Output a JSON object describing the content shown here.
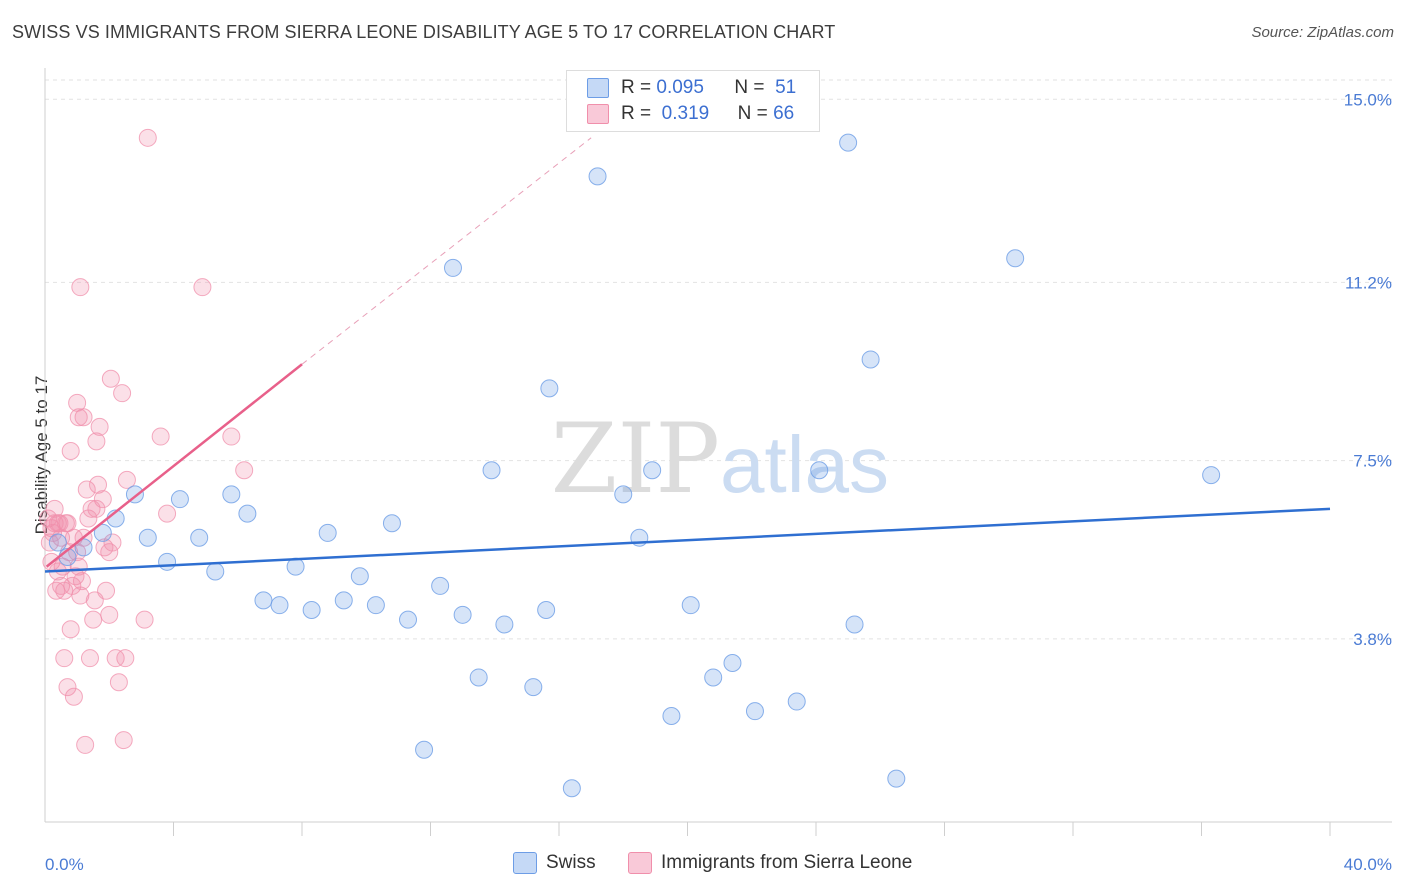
{
  "header": {
    "title": "SWISS VS IMMIGRANTS FROM SIERRA LEONE DISABILITY AGE 5 TO 17 CORRELATION CHART",
    "source": "Source: ZipAtlas.com"
  },
  "watermark": {
    "zip": "ZIP",
    "atlas": "atlas"
  },
  "legend": {
    "swiss": {
      "r_label": "R =",
      "r_value": "0.095",
      "n_label": "N =",
      "n_value": "51"
    },
    "sierra": {
      "r_label": "R =",
      "r_value": "0.319",
      "n_label": "N =",
      "n_value": "66"
    }
  },
  "bottom_legend": {
    "swiss": "Swiss",
    "sierra": "Immigrants from Sierra Leone"
  },
  "chart_data": {
    "type": "scatter",
    "title": "SWISS VS IMMIGRANTS FROM SIERRA LEONE DISABILITY AGE 5 TO 17 CORRELATION CHART",
    "xlabel": "",
    "ylabel": "Disability Age 5 to 17",
    "xlim": [
      0,
      40
    ],
    "ylim": [
      0,
      15.4
    ],
    "x_tick_labels": [
      "0.0%",
      "40.0%"
    ],
    "y_ticks": [
      3.8,
      7.5,
      11.2,
      15.0
    ],
    "y_tick_labels": [
      "3.8%",
      "7.5%",
      "11.2%",
      "15.0%"
    ],
    "colors": {
      "swiss": "#6d9de6",
      "swiss_line": "#2f6fd1",
      "sierra": "#f08fab",
      "sierra_line": "#e8608a"
    },
    "series": [
      {
        "name": "Swiss",
        "r": 0.095,
        "n": 51,
        "trend": {
          "x": [
            0,
            40
          ],
          "y": [
            5.2,
            6.5
          ]
        },
        "points": [
          [
            0.4,
            5.8
          ],
          [
            0.7,
            5.5
          ],
          [
            1.2,
            5.7
          ],
          [
            1.8,
            6.0
          ],
          [
            2.2,
            6.3
          ],
          [
            2.8,
            6.8
          ],
          [
            3.2,
            5.9
          ],
          [
            3.8,
            5.4
          ],
          [
            4.2,
            6.7
          ],
          [
            4.8,
            5.9
          ],
          [
            5.3,
            5.2
          ],
          [
            5.8,
            6.8
          ],
          [
            6.3,
            6.4
          ],
          [
            6.8,
            4.6
          ],
          [
            7.3,
            4.5
          ],
          [
            7.8,
            5.3
          ],
          [
            8.3,
            4.4
          ],
          [
            8.8,
            6.0
          ],
          [
            9.3,
            4.6
          ],
          [
            9.8,
            5.1
          ],
          [
            10.3,
            4.5
          ],
          [
            10.8,
            6.2
          ],
          [
            11.3,
            4.2
          ],
          [
            11.8,
            1.5
          ],
          [
            12.3,
            4.9
          ],
          [
            12.7,
            11.5
          ],
          [
            13.0,
            4.3
          ],
          [
            13.5,
            3.0
          ],
          [
            13.9,
            7.3
          ],
          [
            14.3,
            4.1
          ],
          [
            15.2,
            2.8
          ],
          [
            15.6,
            4.4
          ],
          [
            15.7,
            9.0
          ],
          [
            16.4,
            0.7
          ],
          [
            17.2,
            13.4
          ],
          [
            18.0,
            6.8
          ],
          [
            18.5,
            5.9
          ],
          [
            18.9,
            7.3
          ],
          [
            19.5,
            2.2
          ],
          [
            20.1,
            4.5
          ],
          [
            20.8,
            3.0
          ],
          [
            21.4,
            3.3
          ],
          [
            22.1,
            2.3
          ],
          [
            23.4,
            2.5
          ],
          [
            24.1,
            7.3
          ],
          [
            25.0,
            14.1
          ],
          [
            25.2,
            4.1
          ],
          [
            25.7,
            9.6
          ],
          [
            26.5,
            0.9
          ],
          [
            30.2,
            11.7
          ],
          [
            36.3,
            7.2
          ]
        ]
      },
      {
        "name": "Immigrants from Sierra Leone",
        "r": 0.319,
        "n": 66,
        "trend": {
          "x": [
            0.05,
            8.0
          ],
          "y": [
            5.3,
            9.5
          ]
        },
        "trend_dashed": {
          "x": [
            8.0,
            17.0
          ],
          "y": [
            9.5,
            14.2
          ]
        },
        "points": [
          [
            0.1,
            6.3
          ],
          [
            0.15,
            5.8
          ],
          [
            0.2,
            6.1
          ],
          [
            0.2,
            5.4
          ],
          [
            0.25,
            6.0
          ],
          [
            0.3,
            6.5
          ],
          [
            0.3,
            6.2
          ],
          [
            0.35,
            4.8
          ],
          [
            0.4,
            5.2
          ],
          [
            0.4,
            6.2
          ],
          [
            0.45,
            6.2
          ],
          [
            0.5,
            5.9
          ],
          [
            0.5,
            4.9
          ],
          [
            0.55,
            5.3
          ],
          [
            0.6,
            3.4
          ],
          [
            0.6,
            4.8
          ],
          [
            0.65,
            6.2
          ],
          [
            0.7,
            6.2
          ],
          [
            0.7,
            2.8
          ],
          [
            0.75,
            5.6
          ],
          [
            0.8,
            4.0
          ],
          [
            0.8,
            7.7
          ],
          [
            0.85,
            4.9
          ],
          [
            0.9,
            5.9
          ],
          [
            0.9,
            2.6
          ],
          [
            0.95,
            5.1
          ],
          [
            1.0,
            5.6
          ],
          [
            1.0,
            8.7
          ],
          [
            1.05,
            5.3
          ],
          [
            1.05,
            8.4
          ],
          [
            1.1,
            11.1
          ],
          [
            1.1,
            4.7
          ],
          [
            1.15,
            5.0
          ],
          [
            1.2,
            8.4
          ],
          [
            1.2,
            5.9
          ],
          [
            1.25,
            1.6
          ],
          [
            1.3,
            6.9
          ],
          [
            1.35,
            6.3
          ],
          [
            1.4,
            3.4
          ],
          [
            1.45,
            6.5
          ],
          [
            1.5,
            4.2
          ],
          [
            1.55,
            4.6
          ],
          [
            1.6,
            7.9
          ],
          [
            1.6,
            6.5
          ],
          [
            1.65,
            7.0
          ],
          [
            1.7,
            8.2
          ],
          [
            1.8,
            6.7
          ],
          [
            1.85,
            5.7
          ],
          [
            1.9,
            4.8
          ],
          [
            2.0,
            4.3
          ],
          [
            2.0,
            5.6
          ],
          [
            2.05,
            9.2
          ],
          [
            2.1,
            5.8
          ],
          [
            2.2,
            3.4
          ],
          [
            2.3,
            2.9
          ],
          [
            2.4,
            8.9
          ],
          [
            2.45,
            1.7
          ],
          [
            2.5,
            3.4
          ],
          [
            2.55,
            7.1
          ],
          [
            3.1,
            4.2
          ],
          [
            3.2,
            14.2
          ],
          [
            3.6,
            8.0
          ],
          [
            3.8,
            6.4
          ],
          [
            4.9,
            11.1
          ],
          [
            5.8,
            8.0
          ],
          [
            6.2,
            7.3
          ]
        ]
      }
    ]
  }
}
